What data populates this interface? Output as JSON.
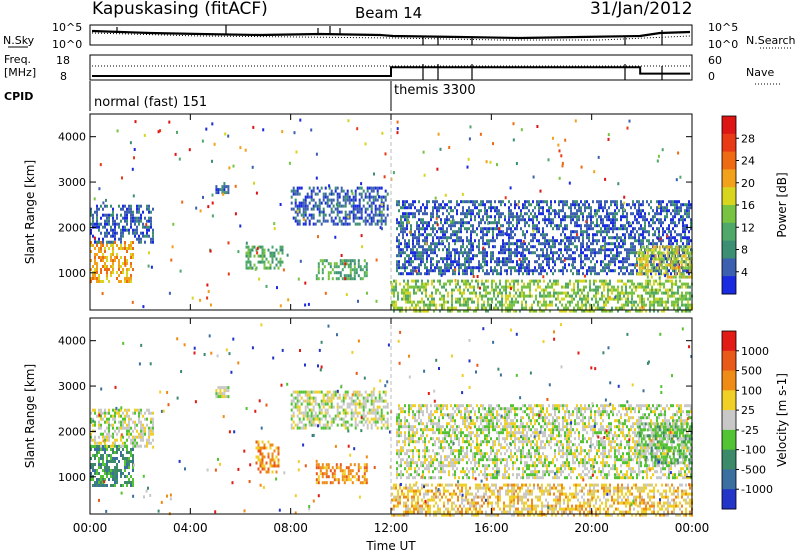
{
  "header": {
    "station": "Kapuskasing (fitACF)",
    "beam": "Beam 14",
    "date": "31/Jan/2012"
  },
  "noise_panel": {
    "left_label": "N.Sky",
    "right_label": "N.Search",
    "ticks_left": [
      "10^5",
      "10^0"
    ],
    "ticks_right": [
      "10^5",
      "10^0"
    ]
  },
  "freq_panel": {
    "left_label_1": "Freq.",
    "left_label_2": "[MHz]",
    "ticks_left": [
      "18",
      "8"
    ],
    "right_label": "Nave",
    "ticks_right": [
      "60",
      "0"
    ],
    "cpid_label": "CPID",
    "modes": [
      {
        "name": "normal (fast) 151",
        "start_hour": 0
      },
      {
        "name": "themis 3300",
        "start_hour": 12
      }
    ],
    "freq_steps": [
      {
        "start_hour": 0,
        "end_hour": 12,
        "freq_mhz": 10.5
      },
      {
        "start_hour": 12,
        "end_hour": 22,
        "freq_mhz": 16
      },
      {
        "start_hour": 22,
        "end_hour": 24,
        "freq_mhz": 12
      }
    ]
  },
  "chart_data": [
    {
      "type": "heatmap",
      "title": "",
      "xlabel": "Time UT",
      "ylabel": "Slant Range [km]",
      "xlim": [
        0,
        24
      ],
      "ylim": [
        180,
        4500
      ],
      "x_ticks": [
        "00:00",
        "04:00",
        "08:00",
        "12:00",
        "16:00",
        "20:00",
        "00:00"
      ],
      "y_ticks": [
        "1000",
        "2000",
        "3000",
        "4000"
      ],
      "colorbar": {
        "label": "Power [dB]",
        "ticks": [
          "4",
          "8",
          "12",
          "16",
          "20",
          "24",
          "28"
        ],
        "colors": [
          "#1a2ae0",
          "#3d5fb0",
          "#3d8f73",
          "#4fa86a",
          "#78c442",
          "#d8d51f",
          "#f2a11a",
          "#ee6b14",
          "#e93a16",
          "#dd1515"
        ]
      },
      "echo_regions": [
        {
          "t0": 0.0,
          "t1": 1.7,
          "r0": 800,
          "r1": 1700,
          "level": 6
        },
        {
          "t0": 0.0,
          "t1": 2.5,
          "r0": 1700,
          "r1": 2500,
          "level": 1
        },
        {
          "t0": 5.0,
          "t1": 5.5,
          "r0": 2800,
          "r1": 3000,
          "level": 1
        },
        {
          "t0": 6.2,
          "t1": 7.7,
          "r0": 1100,
          "r1": 1600,
          "level": 3
        },
        {
          "t0": 8.0,
          "t1": 11.9,
          "r0": 2100,
          "r1": 2900,
          "level": 1
        },
        {
          "t0": 9.0,
          "t1": 11.0,
          "r0": 900,
          "r1": 1300,
          "level": 3
        },
        {
          "t0": 12.2,
          "t1": 24.0,
          "r0": 1000,
          "r1": 2600,
          "level": 1
        },
        {
          "t0": 12.0,
          "t1": 24.0,
          "r0": 180,
          "r1": 850,
          "level": 4
        },
        {
          "t0": 21.8,
          "t1": 24.0,
          "r0": 900,
          "r1": 1600,
          "level": 5
        }
      ]
    },
    {
      "type": "heatmap",
      "title": "",
      "xlabel": "Time UT",
      "ylabel": "Slant Range [km]",
      "xlim": [
        0,
        24
      ],
      "ylim": [
        180,
        4500
      ],
      "x_ticks": [
        "00:00",
        "04:00",
        "08:00",
        "12:00",
        "16:00",
        "20:00",
        "00:00"
      ],
      "y_ticks": [
        "1000",
        "2000",
        "3000",
        "4000"
      ],
      "colorbar": {
        "label": "Velocity [m s-1]",
        "ticks": [
          "1000",
          "500",
          "100",
          "25",
          "-25",
          "-100",
          "-500",
          "-1000"
        ],
        "colors": [
          "#2334c8",
          "#3a6fa0",
          "#3d8a6a",
          "#52c433",
          "#c8c8c8",
          "#f0cf27",
          "#ef8b17",
          "#e9591a",
          "#e21b17"
        ]
      },
      "echo_regions": [
        {
          "t0": 0.0,
          "t1": 1.7,
          "r0": 800,
          "r1": 1700,
          "level": 2
        },
        {
          "t0": 0.0,
          "t1": 2.5,
          "r0": 1700,
          "r1": 2500,
          "level": 4
        },
        {
          "t0": 5.0,
          "t1": 5.5,
          "r0": 2800,
          "r1": 3000,
          "level": 4
        },
        {
          "t0": 6.6,
          "t1": 7.5,
          "r0": 1100,
          "r1": 1800,
          "level": 6
        },
        {
          "t0": 8.0,
          "t1": 11.9,
          "r0": 2100,
          "r1": 2900,
          "level": 4
        },
        {
          "t0": 9.0,
          "t1": 11.0,
          "r0": 900,
          "r1": 1300,
          "level": 6
        },
        {
          "t0": 12.2,
          "t1": 24.0,
          "r0": 1000,
          "r1": 2600,
          "level": 4
        },
        {
          "t0": 12.0,
          "t1": 24.0,
          "r0": 180,
          "r1": 850,
          "level": 5
        },
        {
          "t0": 21.8,
          "t1": 24.0,
          "r0": 1300,
          "r1": 2200,
          "level": 3
        }
      ]
    }
  ]
}
